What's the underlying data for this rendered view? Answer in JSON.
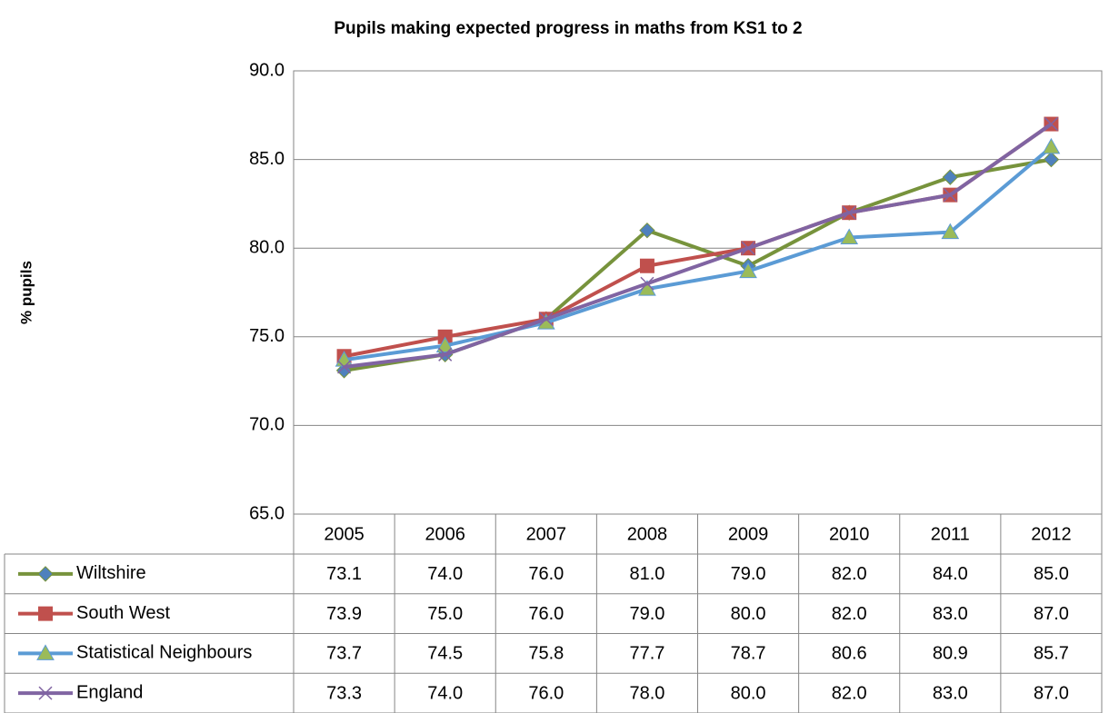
{
  "chart_data": {
    "type": "line",
    "title": "Pupils making expected progress in maths from KS1 to 2",
    "y_label": "% pupils",
    "categories": [
      "2005",
      "2006",
      "2007",
      "2008",
      "2009",
      "2010",
      "2011",
      "2012"
    ],
    "ylim": [
      65,
      90
    ],
    "yticks": [
      {
        "value": 65,
        "label": "65.0"
      },
      {
        "value": 70,
        "label": "70.0"
      },
      {
        "value": 75,
        "label": "75.0"
      },
      {
        "value": 80,
        "label": "80.0"
      },
      {
        "value": 85,
        "label": "85.0"
      },
      {
        "value": 90,
        "label": "90.0"
      }
    ],
    "grid": true,
    "series": [
      {
        "name": "Wiltshire",
        "color": "#77933c",
        "marker": "diamond",
        "marker_color": "#4f81bd",
        "values": [
          73.1,
          74,
          76,
          81,
          79,
          82,
          84,
          85
        ],
        "value_labels": [
          "73.1",
          "74.0",
          "76.0",
          "81.0",
          "79.0",
          "82.0",
          "84.0",
          "85.0"
        ]
      },
      {
        "name": "South West",
        "color": "#c0504d",
        "marker": "square",
        "marker_color": "#c0504d",
        "values": [
          73.9,
          75,
          76,
          79,
          80,
          82,
          83,
          87
        ],
        "value_labels": [
          "73.9",
          "75.0",
          "76.0",
          "79.0",
          "80.0",
          "82.0",
          "83.0",
          "87.0"
        ]
      },
      {
        "name": "Statistical Neighbours",
        "color": "#5b9bd5",
        "marker": "triangle",
        "marker_color": "#9bbb59",
        "values": [
          73.7,
          74.5,
          75.8,
          77.7,
          78.7,
          80.6,
          80.9,
          85.7
        ],
        "value_labels": [
          "73.7",
          "74.5",
          "75.8",
          "77.7",
          "78.7",
          "80.6",
          "80.9",
          "85.7"
        ]
      },
      {
        "name": "England",
        "color": "#8064a2",
        "marker": "x",
        "marker_color": "#8064a2",
        "values": [
          73.3,
          74,
          76,
          78,
          80,
          82,
          83,
          87
        ],
        "value_labels": [
          "73.3",
          "74.0",
          "76.0",
          "78.0",
          "80.0",
          "82.0",
          "83.0",
          "87.0"
        ]
      }
    ]
  }
}
